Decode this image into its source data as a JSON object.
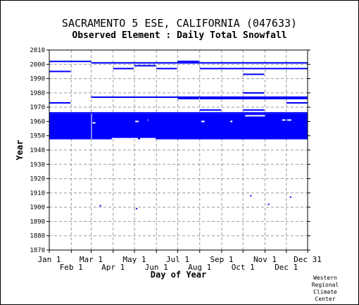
{
  "header": {
    "title": "SACRAMENTO 5 ESE, CALIFORNIA   (047633)",
    "subtitle": "Observed Element : Daily Total Snowfall"
  },
  "credit": [
    "Western",
    "Regional",
    "Climate",
    "Center"
  ],
  "colors": {
    "data": "#0000ff",
    "grid": "#999999",
    "axis": "#000000"
  },
  "chart_data": {
    "type": "scatter",
    "xlabel": "Day of Year",
    "ylabel": "Year",
    "xlim": [
      1,
      365
    ],
    "ylim": [
      1870,
      2010
    ],
    "y_ticks": [
      1870,
      1880,
      1890,
      1900,
      1910,
      1920,
      1930,
      1940,
      1950,
      1960,
      1970,
      1980,
      1990,
      2000,
      2010
    ],
    "x_ticks": [
      {
        "label": "Jan 1",
        "day": 1,
        "row": 0
      },
      {
        "label": "Feb 1",
        "day": 32,
        "row": 1
      },
      {
        "label": "Mar 1",
        "day": 60,
        "row": 0
      },
      {
        "label": "Apr 1",
        "day": 91,
        "row": 1
      },
      {
        "label": "May 1",
        "day": 121,
        "row": 0
      },
      {
        "label": "Jun 1",
        "day": 152,
        "row": 1
      },
      {
        "label": "Jul 1",
        "day": 182,
        "row": 0
      },
      {
        "label": "Aug 1",
        "day": 213,
        "row": 1
      },
      {
        "label": "Sep 1",
        "day": 244,
        "row": 0
      },
      {
        "label": "Oct 1",
        "day": 274,
        "row": 1
      },
      {
        "label": "Nov 1",
        "day": 305,
        "row": 0
      },
      {
        "label": "Dec 1",
        "day": 335,
        "row": 1
      },
      {
        "label": "Dec 31",
        "day": 365,
        "row": 0
      }
    ],
    "grid": true,
    "block": {
      "day_start": 1,
      "day_end": 365,
      "year_start": 1948,
      "year_end": 1965
    },
    "block_gaps": [
      {
        "day_start": 60,
        "day_end": 61,
        "year_start": 1948,
        "year_end": 1965
      },
      {
        "day_start": 89,
        "day_end": 126,
        "year_start": 1948,
        "year_end": 1948
      },
      {
        "day_start": 129,
        "day_end": 151,
        "year_start": 1948,
        "year_end": 1948
      },
      {
        "day_start": 62,
        "day_end": 66,
        "year_start": 1959,
        "year_end": 1959
      },
      {
        "day_start": 122,
        "day_end": 127,
        "year_start": 1960,
        "year_end": 1960
      },
      {
        "day_start": 140,
        "day_end": 141,
        "year_start": 1961,
        "year_end": 1961
      },
      {
        "day_start": 215,
        "day_end": 220,
        "year_start": 1960,
        "year_end": 1960
      },
      {
        "day_start": 256,
        "day_end": 259,
        "year_start": 1960,
        "year_end": 1960
      },
      {
        "day_start": 277,
        "day_end": 305,
        "year_start": 1964,
        "year_end": 1964
      },
      {
        "day_start": 329,
        "day_end": 334,
        "year_start": 1961,
        "year_end": 1961
      },
      {
        "day_start": 336,
        "day_end": 342,
        "year_start": 1961,
        "year_end": 1961
      }
    ],
    "segments": [
      {
        "year": 2002,
        "day_start": 1,
        "day_end": 60
      },
      {
        "year": 2001,
        "day_start": 60,
        "day_end": 365
      },
      {
        "year": 2002,
        "day_start": 182,
        "day_end": 212
      },
      {
        "year": 1999,
        "day_start": 121,
        "day_end": 151
      },
      {
        "year": 1997,
        "day_start": 91,
        "day_end": 120
      },
      {
        "year": 1997,
        "day_start": 152,
        "day_end": 181
      },
      {
        "year": 1997,
        "day_start": 213,
        "day_end": 365
      },
      {
        "year": 1995,
        "day_start": 1,
        "day_end": 31
      },
      {
        "year": 1993,
        "day_start": 274,
        "day_end": 304
      },
      {
        "year": 1980,
        "day_start": 274,
        "day_end": 304
      },
      {
        "year": 1977,
        "day_start": 60,
        "day_end": 365
      },
      {
        "year": 1976,
        "day_start": 182,
        "day_end": 212
      },
      {
        "year": 1976,
        "day_start": 213,
        "day_end": 365
      },
      {
        "year": 1973,
        "day_start": 1,
        "day_end": 31
      },
      {
        "year": 1973,
        "day_start": 335,
        "day_end": 365
      },
      {
        "year": 1968,
        "day_start": 213,
        "day_end": 243
      },
      {
        "year": 1968,
        "day_start": 274,
        "day_end": 304
      },
      {
        "year": 1966,
        "day_start": 1,
        "day_end": 365
      }
    ],
    "points": [
      {
        "day": 73,
        "year": 1901
      },
      {
        "day": 124,
        "year": 1899
      },
      {
        "day": 285,
        "year": 1908
      },
      {
        "day": 310,
        "year": 1902
      },
      {
        "day": 341,
        "year": 1907
      }
    ]
  }
}
